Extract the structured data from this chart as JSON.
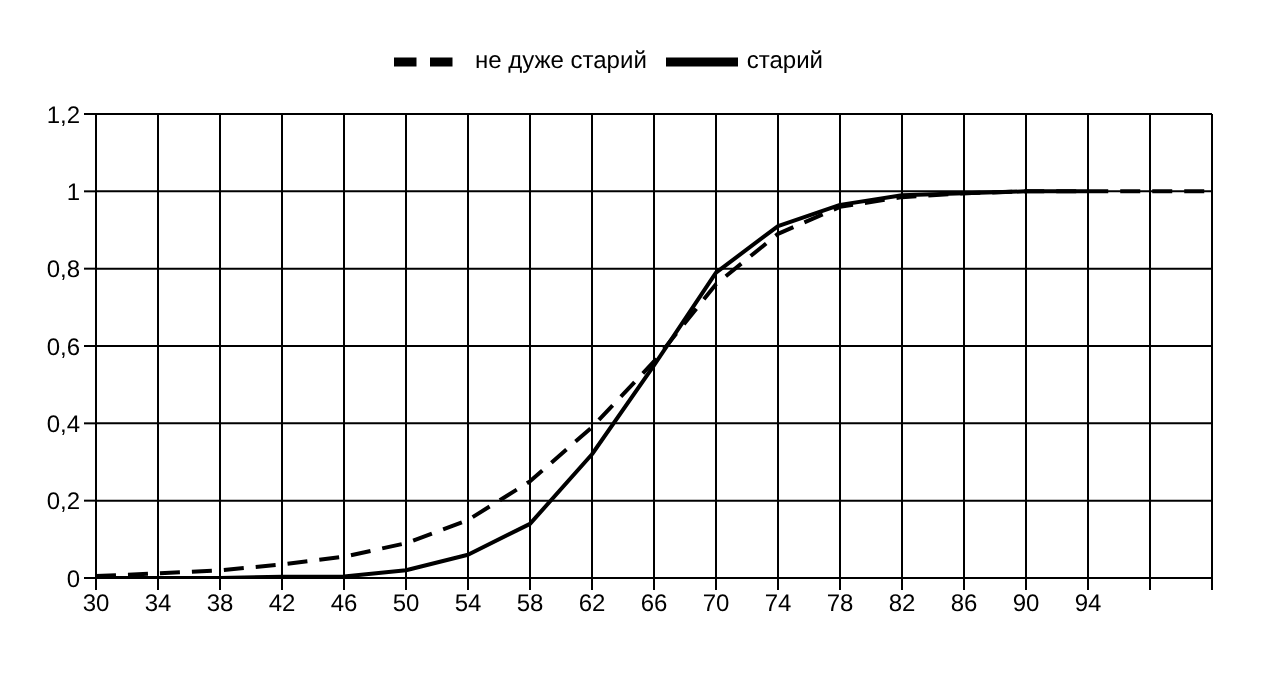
{
  "chart_data": {
    "type": "line",
    "categories": [
      "30",
      "34",
      "38",
      "42",
      "46",
      "50",
      "54",
      "58",
      "62",
      "66",
      "70",
      "74",
      "78",
      "82",
      "86",
      "90",
      "94",
      null,
      null
    ],
    "series": [
      {
        "name": "не дуже старий",
        "color": "#000000",
        "line_style": "dashed",
        "values": [
          0.005,
          0.012,
          0.02,
          0.035,
          0.055,
          0.09,
          0.15,
          0.25,
          0.39,
          0.56,
          0.76,
          0.89,
          0.96,
          0.985,
          0.995,
          1.0,
          1.0,
          1.0,
          1.0
        ]
      },
      {
        "name": "старий",
        "color": "#000000",
        "line_style": "solid",
        "values": [
          0,
          0,
          0,
          0.003,
          0.004,
          0.02,
          0.06,
          0.14,
          0.32,
          0.55,
          0.79,
          0.91,
          0.965,
          0.99,
          0.995,
          1.0,
          1.0,
          null,
          null
        ]
      }
    ],
    "ylim": [
      0,
      1.2
    ],
    "yticks": [
      0,
      {
        "value": 0.2,
        "label": "0,2"
      },
      {
        "value": 0.4,
        "label": "0,4"
      },
      {
        "value": 0.6,
        "label": "0,6"
      },
      {
        "value": 0.8,
        "label": "0,8"
      },
      1,
      {
        "value": 1.2,
        "label": "1,2"
      }
    ],
    "grid": true,
    "legend": "top",
    "marker": "none"
  }
}
